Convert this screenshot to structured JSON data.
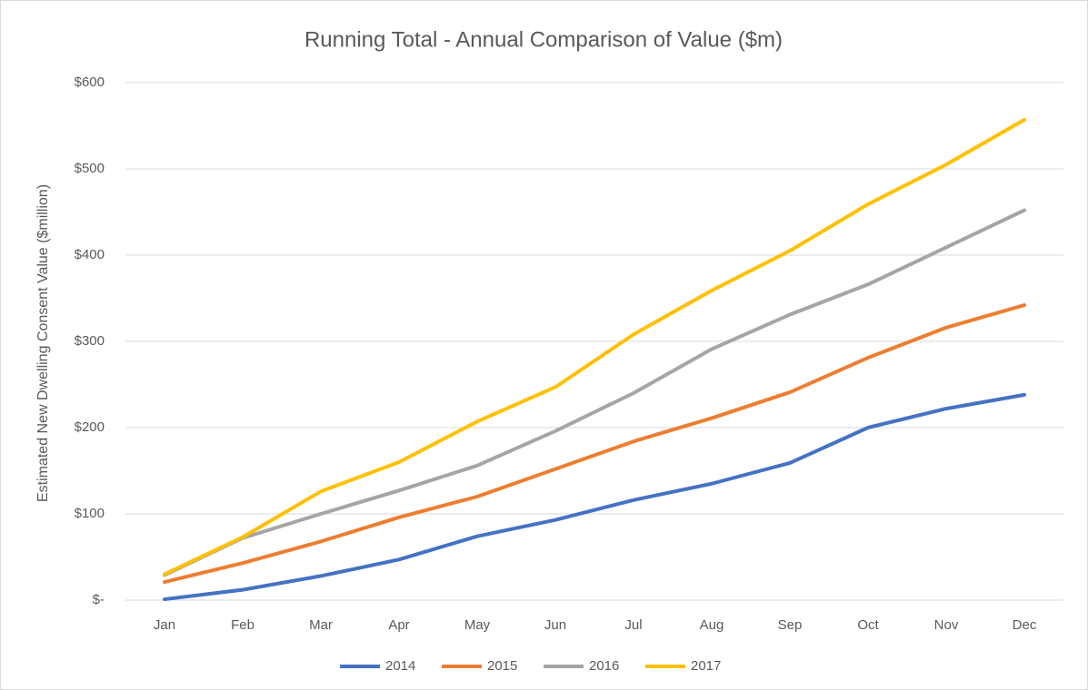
{
  "chart_data": {
    "type": "line",
    "title": "Running Total - Annual Comparison of Value ($m)",
    "y_label": "Estimated New Dwelling Consent Value ($million)",
    "categories": [
      "Jan",
      "Feb",
      "Mar",
      "Apr",
      "May",
      "Jun",
      "Jul",
      "Aug",
      "Sep",
      "Oct",
      "Nov",
      "Dec"
    ],
    "series": [
      {
        "name": "2014",
        "color": "#4472c4",
        "values": [
          1,
          12,
          28,
          47,
          74,
          93,
          116,
          135,
          159,
          200,
          222,
          238
        ]
      },
      {
        "name": "2015",
        "color": "#ed7d31",
        "values": [
          21,
          43,
          68,
          96,
          120,
          152,
          184,
          211,
          241,
          281,
          316,
          342
        ]
      },
      {
        "name": "2016",
        "color": "#a5a5a5",
        "values": [
          29,
          72,
          100,
          127,
          156,
          196,
          240,
          291,
          331,
          366,
          409,
          452
        ]
      },
      {
        "name": "2017",
        "color": "#ffc000",
        "values": [
          30,
          73,
          126,
          160,
          207,
          247,
          308,
          359,
          405,
          459,
          505,
          557
        ]
      }
    ],
    "ylim": [
      0,
      600
    ],
    "yticks": [
      {
        "value": 0,
        "label": "$-"
      },
      {
        "value": 100,
        "label": "$100"
      },
      {
        "value": 200,
        "label": "$200"
      },
      {
        "value": 300,
        "label": "$300"
      },
      {
        "value": 400,
        "label": "$400"
      },
      {
        "value": 500,
        "label": "$500"
      },
      {
        "value": 600,
        "label": "$600"
      }
    ],
    "grid": true,
    "legend": "bottom"
  }
}
